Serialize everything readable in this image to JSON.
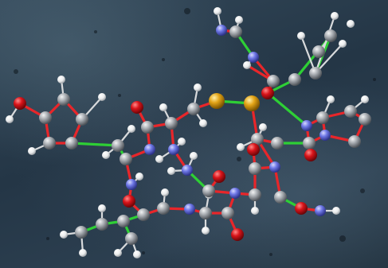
{
  "image": {
    "atom_colors": {
      "C": "#a9adb2",
      "H": "#f4f5f6",
      "O": "#d9141a",
      "N": "#6f78e6",
      "S": "#e3a417"
    },
    "bond_colors": {
      "backbone": "#e8262a",
      "side_chain": "#2ecf35",
      "hydrogen": "#d8dadc"
    },
    "background_color": "#2a3c4c"
  }
}
